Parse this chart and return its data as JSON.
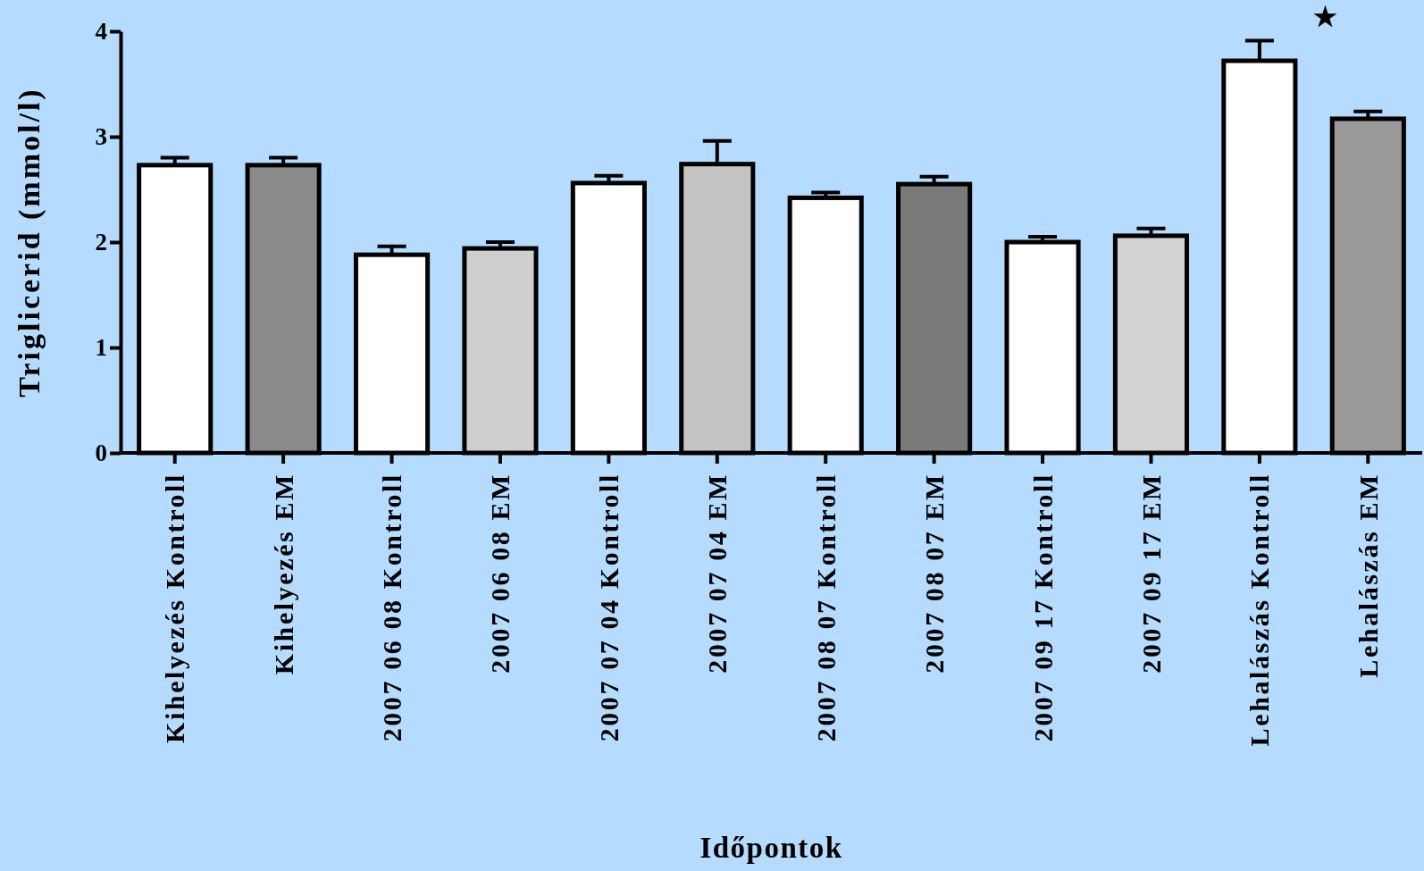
{
  "chart_data": {
    "type": "bar",
    "xlabel": "Időpontok",
    "ylabel": "Triglicerid (mmol/l)",
    "categories": [
      "Kihelyezés Kontroll",
      "Kihelyezés EM",
      "2007 06 08 Kontroll",
      "2007 06 08 EM",
      "2007 07 04 Kontroll",
      "2007 07 04 EM",
      "2007 08 07 Kontroll",
      "2007 08 07 EM",
      "2007 09 17 Kontroll",
      "2007 09 17 EM",
      "Lehalászás Kontroll",
      "Lehalászás EM"
    ],
    "values": [
      2.73,
      2.73,
      1.88,
      1.94,
      2.56,
      2.74,
      2.42,
      2.55,
      2.0,
      2.06,
      3.72,
      3.17
    ],
    "errors": [
      [
        2.73,
        2.8
      ],
      [
        2.73,
        2.8
      ],
      [
        1.88,
        1.96
      ],
      [
        1.94,
        2.0
      ],
      [
        2.56,
        2.63
      ],
      [
        2.74,
        2.96
      ],
      [
        2.42,
        2.47
      ],
      [
        2.55,
        2.62
      ],
      [
        2.0,
        2.05
      ],
      [
        2.06,
        2.13
      ],
      [
        3.72,
        3.91
      ],
      [
        3.17,
        3.24
      ]
    ],
    "colors": [
      "#ffffff",
      "#8a8a8a",
      "#ffffff",
      "#cfcfcf",
      "#ffffff",
      "#c4c4c4",
      "#ffffff",
      "#7a7a7a",
      "#ffffff",
      "#d2d2d2",
      "#ffffff",
      "#9a9a9a"
    ],
    "ylim": [
      0,
      4
    ],
    "yticks": [
      0,
      1,
      2,
      3,
      4
    ],
    "grid": false,
    "annotations": [
      "★"
    ]
  }
}
